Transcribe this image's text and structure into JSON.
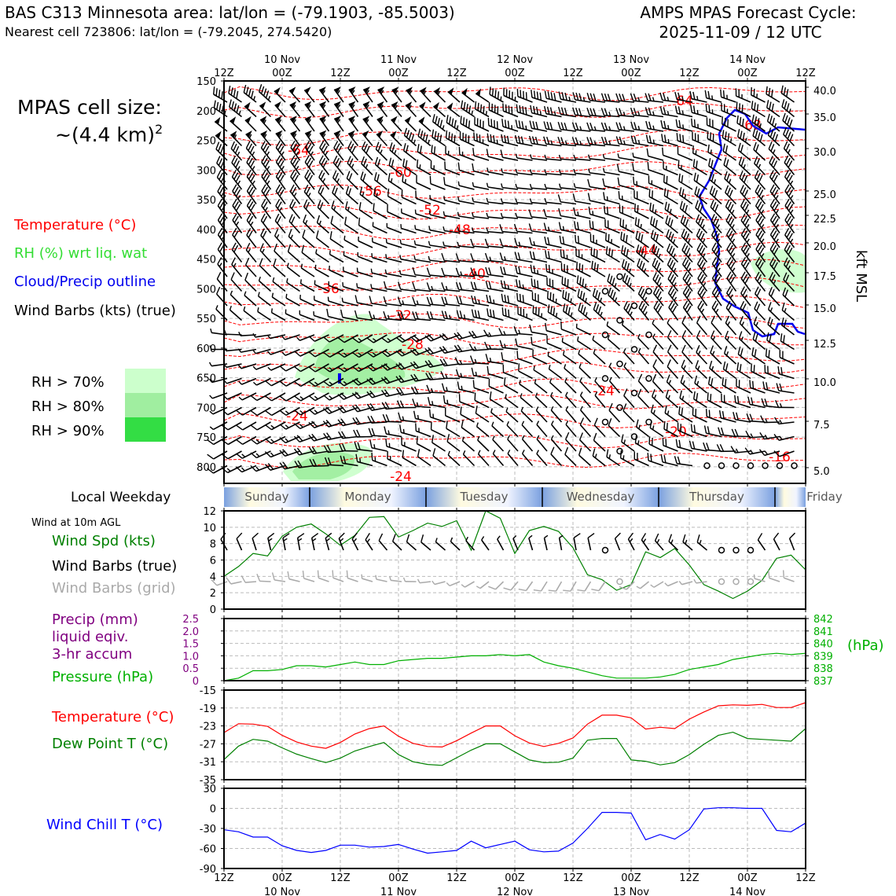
{
  "header": {
    "title_line1": "BAS C313 Minnesota area: lat/lon = (-79.1903, -85.5003)",
    "title_line2": "Nearest cell 723806: lat/lon = (-79.2045, 274.5420)",
    "cycle_line1": "AMPS MPAS Forecast Cycle:",
    "cycle_line2": "2025-11-09 / 12 UTC"
  },
  "cell_size": {
    "label": "MPAS cell size:",
    "value": "~(4.4 km)",
    "exponent": "2"
  },
  "legend": {
    "temperature": "Temperature (°C)",
    "rh": "RH (%) wrt liq. wat",
    "cloud": "Cloud/Precip outline",
    "wind_barbs": "Wind Barbs (kts) (true)",
    "rh70": "RH > 70%",
    "rh80": "RH > 80%",
    "rh90": "RH > 90%"
  },
  "colors": {
    "temperature": "#ff0000",
    "rh_label": "#33dd33",
    "cloud": "#0000ee",
    "wind_speed": "#008000",
    "dew_point": "#008000",
    "precip": "#800080",
    "pressure": "#00b000",
    "wind_chill": "#0000ff",
    "barbs_grid": "#aaaaaa",
    "rh70": "#ccffcc",
    "rh80": "#a0eea0",
    "rh90": "#33dd44"
  },
  "time_axis": {
    "hour_ticks": [
      "12Z",
      "00Z",
      "12Z",
      "00Z",
      "12Z",
      "00Z",
      "12Z",
      "00Z",
      "12Z",
      "00Z",
      "12Z"
    ],
    "date_labels": [
      "10 Nov",
      "11 Nov",
      "12 Nov",
      "13 Nov",
      "14 Nov"
    ]
  },
  "weekday": {
    "label": "Local Weekday",
    "days": [
      "Sunday",
      "Monday",
      "Tuesday",
      "Wednesday",
      "Thursday",
      "Friday"
    ]
  },
  "panel_labels": {
    "wind_10m": "Wind at 10m AGL",
    "wind_spd": "Wind Spd (kts)",
    "barbs_true": "Wind Barbs (true)",
    "barbs_grid": "Wind Barbs (grid)",
    "precip_1": "Precip (mm)",
    "precip_2": "liquid eqiv.",
    "precip_3": "3-hr accum",
    "pressure": "Pressure (hPa)",
    "pressure_unit": "(hPa)",
    "temperature": "Temperature (°C)",
    "dew_point": "Dew Point T (°C)",
    "wind_chill": "Wind Chill T (°C)",
    "kft_label": "kft MSL"
  },
  "chart_data": [
    {
      "type": "line",
      "title": "Vertical cross-section",
      "ylabel_left": "",
      "ylabel_right": "kft MSL",
      "y_ticks_hpa": [
        "150",
        "200",
        "250",
        "300",
        "350",
        "400",
        "450",
        "500",
        "550",
        "600",
        "650",
        "700",
        "750",
        "800"
      ],
      "y_ticks_kft": [
        "40.0",
        "35.0",
        "30.0",
        "25.0",
        "22.5",
        "20.0",
        "17.5",
        "15.0",
        "12.5",
        "10.0",
        "7.5",
        "5.0"
      ],
      "isotherm_labels": [
        "-64",
        "-68",
        "-64",
        "-60",
        "-56",
        "-52",
        "-48",
        "-44",
        "-40",
        "-36",
        "-32",
        "-28",
        "-24",
        "-24",
        "-20",
        "-24",
        "-16"
      ]
    },
    {
      "type": "line",
      "name": "Wind Spd (kts)",
      "yticks": [
        "0",
        "2",
        "4",
        "6",
        "8",
        "10",
        "12"
      ],
      "ylim": [
        0,
        12
      ],
      "x": [
        0,
        3,
        6,
        9,
        12,
        15,
        18,
        21,
        24,
        27,
        30,
        33,
        36,
        39,
        42,
        45,
        48,
        51,
        54,
        57,
        60,
        63,
        66,
        69,
        72,
        75,
        78,
        81,
        84,
        87,
        90,
        93,
        96,
        99,
        102,
        105,
        108,
        111,
        114,
        117,
        120
      ],
      "values": [
        4.0,
        5.2,
        6.8,
        6.5,
        8.9,
        10.0,
        10.4,
        9.2,
        7.8,
        9.0,
        11.2,
        11.3,
        8.8,
        9.6,
        10.5,
        10.1,
        10.8,
        7.2,
        12.0,
        11.1,
        6.8,
        9.6,
        10.1,
        9.5,
        7.5,
        4.2,
        3.6,
        2.3,
        3.0,
        7.0,
        6.3,
        7.4,
        5.4,
        3.0,
        2.2,
        1.3,
        2.2,
        3.5,
        6.2,
        6.6,
        4.8
      ]
    },
    {
      "type": "line",
      "name": "Pressure (hPa)",
      "precip_ticks": [
        "0",
        "0.5",
        "1.0",
        "1.5",
        "2.0",
        "2.5"
      ],
      "pressure_ticks": [
        "837",
        "838",
        "839",
        "840",
        "841",
        "842"
      ],
      "ylim": [
        837,
        842
      ],
      "x": [
        0,
        3,
        6,
        9,
        12,
        15,
        18,
        21,
        24,
        27,
        30,
        33,
        36,
        39,
        42,
        45,
        48,
        51,
        54,
        57,
        60,
        63,
        66,
        69,
        72,
        75,
        78,
        81,
        84,
        87,
        90,
        93,
        96,
        99,
        102,
        105,
        108,
        111,
        114,
        117,
        120
      ],
      "values": [
        837.0,
        837.2,
        837.8,
        837.8,
        837.9,
        838.2,
        838.2,
        838.1,
        838.3,
        838.5,
        838.3,
        838.3,
        838.6,
        838.7,
        838.8,
        838.8,
        838.9,
        839.0,
        839.0,
        839.1,
        839.0,
        839.1,
        838.5,
        838.2,
        838.0,
        837.7,
        837.4,
        837.2,
        837.2,
        837.2,
        837.3,
        837.5,
        837.9,
        838.1,
        838.3,
        838.7,
        838.9,
        839.1,
        839.2,
        839.1,
        839.2
      ]
    },
    {
      "type": "line",
      "yticks": [
        "-15",
        "-19",
        "-23",
        "-27",
        "-31",
        "-35"
      ],
      "ylim": [
        -35,
        -15
      ],
      "x": [
        0,
        3,
        6,
        9,
        12,
        15,
        18,
        21,
        24,
        27,
        30,
        33,
        36,
        39,
        42,
        45,
        48,
        51,
        54,
        57,
        60,
        63,
        66,
        69,
        72,
        75,
        78,
        81,
        84,
        87,
        90,
        93,
        96,
        99,
        102,
        105,
        108,
        111,
        114,
        117,
        120
      ],
      "series": [
        {
          "name": "Temperature (°C)",
          "values": [
            -24.5,
            -22.5,
            -22.6,
            -23.1,
            -25.1,
            -26.6,
            -27.5,
            -28.0,
            -26.7,
            -24.8,
            -23.6,
            -23.0,
            -25.3,
            -26.9,
            -27.6,
            -27.7,
            -26.3,
            -24.6,
            -23.0,
            -23.0,
            -25.2,
            -26.8,
            -27.6,
            -26.9,
            -25.7,
            -22.6,
            -20.6,
            -20.6,
            -21.2,
            -23.7,
            -23.3,
            -23.6,
            -21.5,
            -19.9,
            -18.5,
            -18.3,
            -18.4,
            -18.2,
            -18.9,
            -18.9,
            -17.8
          ]
        },
        {
          "name": "Dew Point T (°C)",
          "values": [
            -30.5,
            -27.5,
            -26.0,
            -26.4,
            -27.9,
            -29.3,
            -30.3,
            -31.2,
            -30.2,
            -28.6,
            -27.6,
            -26.7,
            -29.4,
            -31.0,
            -31.6,
            -31.8,
            -30.1,
            -28.4,
            -27.0,
            -27.0,
            -28.8,
            -30.6,
            -31.2,
            -31.1,
            -30.2,
            -26.2,
            -25.8,
            -25.8,
            -30.6,
            -30.9,
            -31.7,
            -31.2,
            -29.4,
            -27.1,
            -25.1,
            -24.4,
            -25.8,
            -26.0,
            -26.2,
            -26.4,
            -23.6
          ]
        }
      ]
    },
    {
      "type": "line",
      "name": "Wind Chill T (°C)",
      "yticks": [
        "30",
        "0",
        "-30",
        "-60",
        "-90"
      ],
      "ylim": [
        -90,
        30
      ],
      "x": [
        0,
        3,
        6,
        9,
        12,
        15,
        18,
        21,
        24,
        27,
        30,
        33,
        36,
        39,
        42,
        45,
        48,
        51,
        54,
        57,
        60,
        63,
        66,
        69,
        72,
        75,
        78,
        81,
        84,
        87,
        90,
        93,
        96,
        99,
        102,
        105,
        108,
        111,
        114,
        117,
        120
      ],
      "values": [
        -32,
        -35,
        -43,
        -43,
        -56,
        -63,
        -66,
        -63,
        -55,
        -55,
        -58,
        -57,
        -54,
        -61,
        -67,
        -65,
        -63,
        -49,
        -59,
        -54,
        -49,
        -62,
        -65,
        -64,
        -52,
        -30,
        -6,
        -6,
        -7,
        -47,
        -39,
        -46,
        -32,
        -1,
        1,
        1,
        0,
        0,
        -33,
        -35,
        -22
      ]
    }
  ]
}
